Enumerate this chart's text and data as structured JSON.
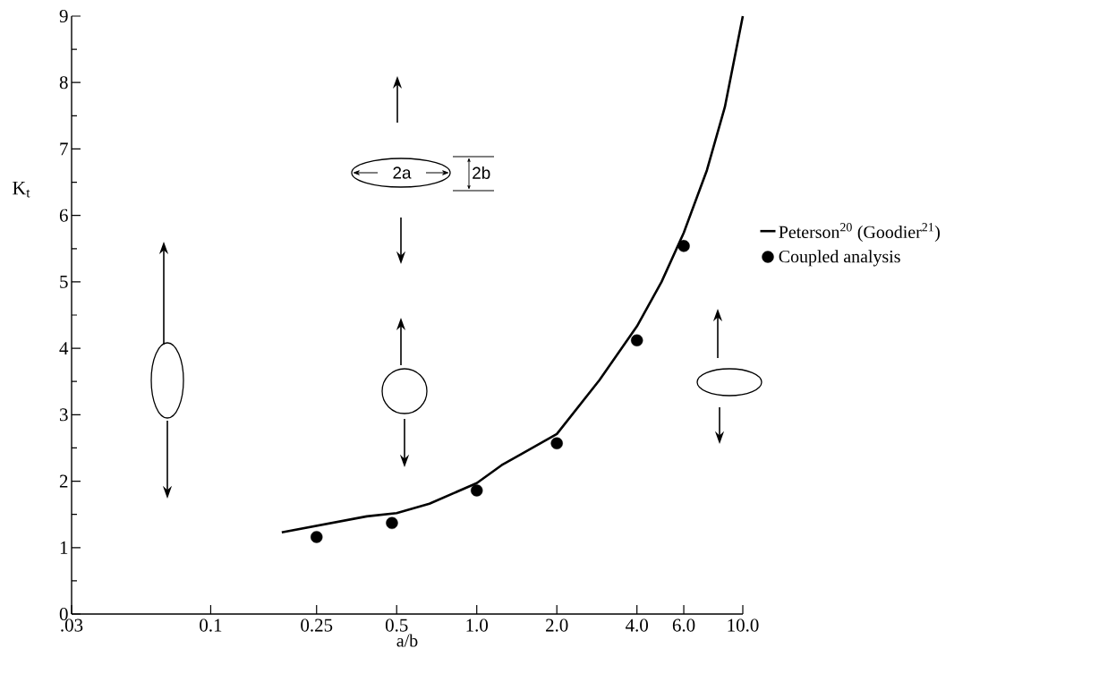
{
  "chart_data": {
    "type": "line",
    "xlabel": "a/b",
    "ylabel": "K$_{t}$",
    "log": "x",
    "xlim": [
      0.03,
      10
    ],
    "ylim": [
      0,
      9
    ],
    "xticks": [
      {
        "value": 0.03,
        "label": ".03"
      },
      0.1,
      0.25,
      0.5,
      {
        "value": 1,
        "label": "1.0"
      },
      {
        "value": 2,
        "label": "2.0"
      },
      {
        "value": 4,
        "label": "4.0"
      },
      {
        "value": 6,
        "label": "6.0"
      },
      {
        "value": 10,
        "label": "10.0"
      }
    ],
    "yticks": [
      0,
      1,
      2,
      3,
      4,
      5,
      6,
      7,
      8,
      9
    ],
    "legend": "right",
    "annotations": [
      "2a",
      "2b"
    ],
    "series": [
      {
        "name": "Peterson$^{20}$ (Goodier$^{21}$)",
        "type": "line",
        "color": "#000000",
        "marker": "none",
        "line_style": "solid",
        "x": [
          0.185,
          0.386,
          0.5,
          0.664,
          1.0,
          1.24,
          2.0,
          2.89,
          4.0,
          4.95,
          6.0,
          7.33,
          8.56,
          10.0
        ],
        "values": [
          1.23,
          1.47,
          1.52,
          1.66,
          1.97,
          2.24,
          2.71,
          3.52,
          4.33,
          5.0,
          5.74,
          6.68,
          7.63,
          9.0
        ]
      },
      {
        "name": "Coupled analysis",
        "type": "scatter",
        "color": "#000000",
        "marker": "circle",
        "x": [
          0.25,
          0.48,
          1.0,
          2.0,
          4.0,
          6.0
        ],
        "values": [
          1.16,
          1.37,
          1.86,
          2.57,
          4.12,
          5.54
        ]
      }
    ]
  }
}
